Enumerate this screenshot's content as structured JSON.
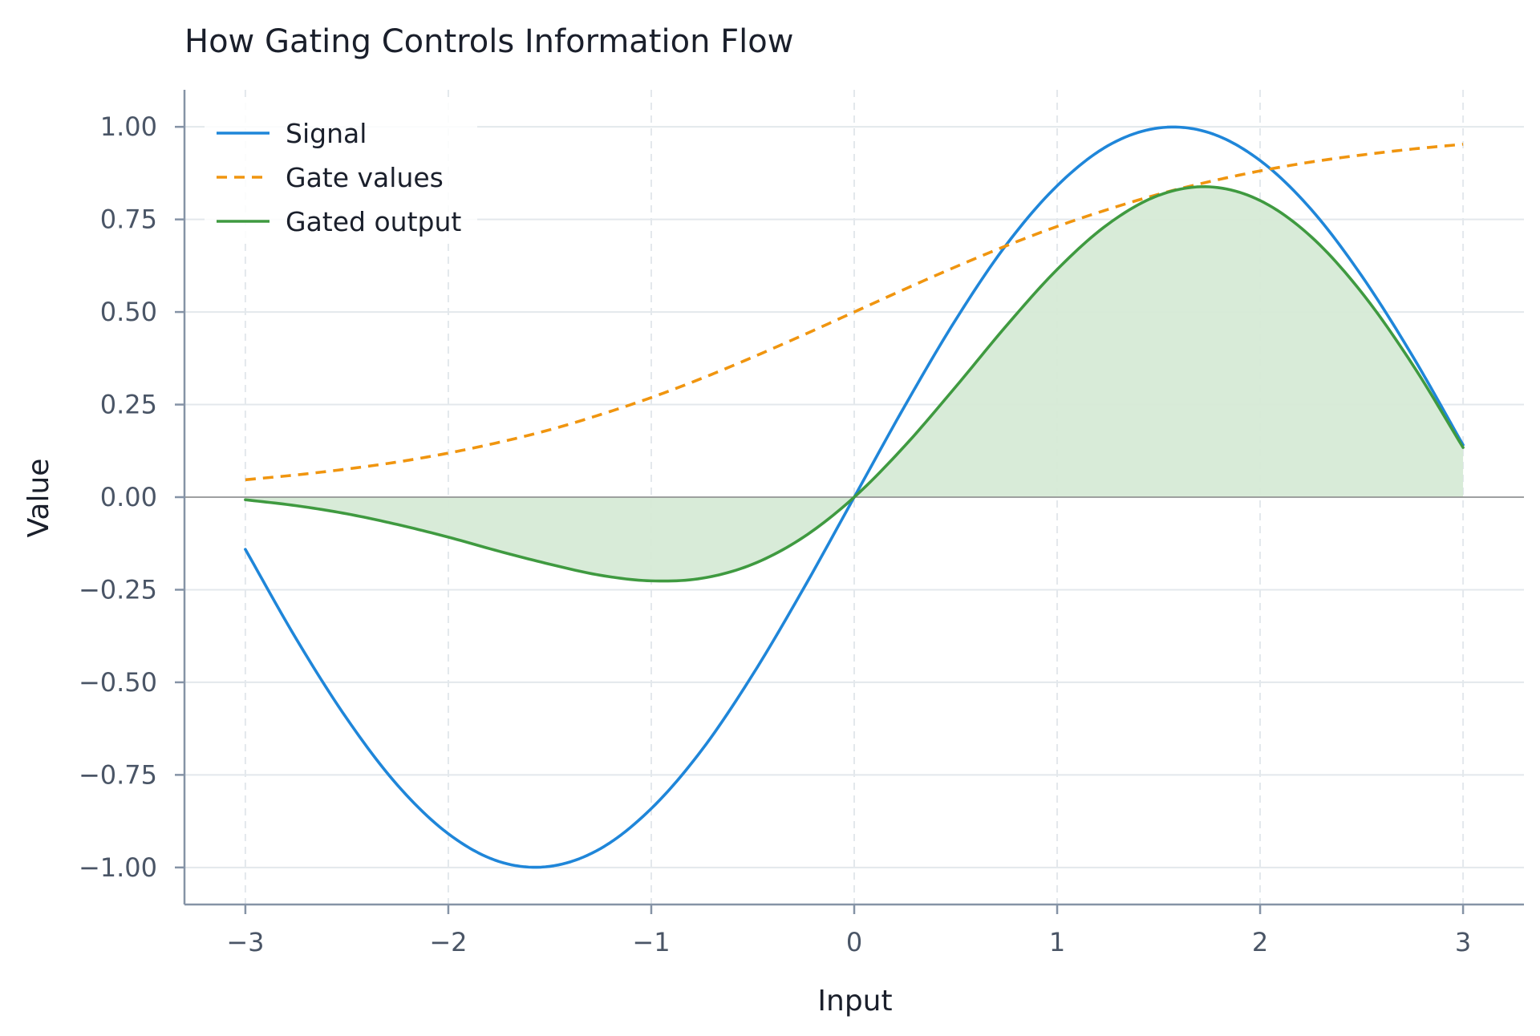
{
  "chart_data": {
    "type": "line",
    "title": "How Gating Controls Information Flow",
    "xlabel": "Input",
    "ylabel": "Value",
    "xlim": [
      -3.3,
      3.3
    ],
    "ylim": [
      -1.1,
      1.1
    ],
    "xticks": [
      -3,
      -2,
      -1,
      0,
      1,
      2,
      3
    ],
    "xtick_labels": [
      "−3",
      "−2",
      "−1",
      "0",
      "1",
      "2",
      "3"
    ],
    "yticks": [
      -1.0,
      -0.75,
      -0.5,
      -0.25,
      0.0,
      0.25,
      0.5,
      0.75,
      1.0
    ],
    "ytick_labels": [
      "−1.00",
      "−0.75",
      "−0.50",
      "−0.25",
      "0.00",
      "0.25",
      "0.50",
      "0.75",
      "1.00"
    ],
    "grid": true,
    "legend_position": "top-left",
    "zero_line": true,
    "fill_between_output_and_zero": true,
    "x": [
      -3.0,
      -2.75,
      -2.5,
      -2.25,
      -2.0,
      -1.75,
      -1.5,
      -1.25,
      -1.0,
      -0.75,
      -0.5,
      -0.25,
      0.0,
      0.25,
      0.5,
      0.75,
      1.0,
      1.25,
      1.5,
      1.75,
      2.0,
      2.25,
      2.5,
      2.75,
      3.0
    ],
    "series": [
      {
        "name": "Signal",
        "color": "#1f86d9",
        "dash": "solid",
        "values": [
          -0.141,
          -0.382,
          -0.598,
          -0.778,
          -0.909,
          -0.984,
          -0.997,
          -0.949,
          -0.841,
          -0.682,
          -0.479,
          -0.247,
          0.0,
          0.247,
          0.479,
          0.682,
          0.841,
          0.949,
          0.997,
          0.984,
          0.909,
          0.778,
          0.598,
          0.382,
          0.141
        ]
      },
      {
        "name": "Gate values",
        "color": "#f0950f",
        "dash": "dashed",
        "values": [
          0.047,
          0.06,
          0.076,
          0.095,
          0.119,
          0.148,
          0.182,
          0.223,
          0.269,
          0.321,
          0.378,
          0.438,
          0.5,
          0.562,
          0.622,
          0.679,
          0.731,
          0.777,
          0.818,
          0.852,
          0.881,
          0.905,
          0.924,
          0.94,
          0.953
        ]
      },
      {
        "name": "Gated output",
        "color": "#3f9a40",
        "dash": "solid",
        "values": [
          -0.007,
          -0.023,
          -0.045,
          -0.074,
          -0.108,
          -0.146,
          -0.181,
          -0.211,
          -0.226,
          -0.219,
          -0.181,
          -0.108,
          0.0,
          0.139,
          0.298,
          0.463,
          0.615,
          0.737,
          0.815,
          0.838,
          0.801,
          0.704,
          0.553,
          0.359,
          0.134
        ]
      }
    ],
    "colors": {
      "fill": "#d6ead6",
      "grid": "#e3e8ec",
      "axis": "#8593a6",
      "zero_line": "#888888"
    }
  }
}
